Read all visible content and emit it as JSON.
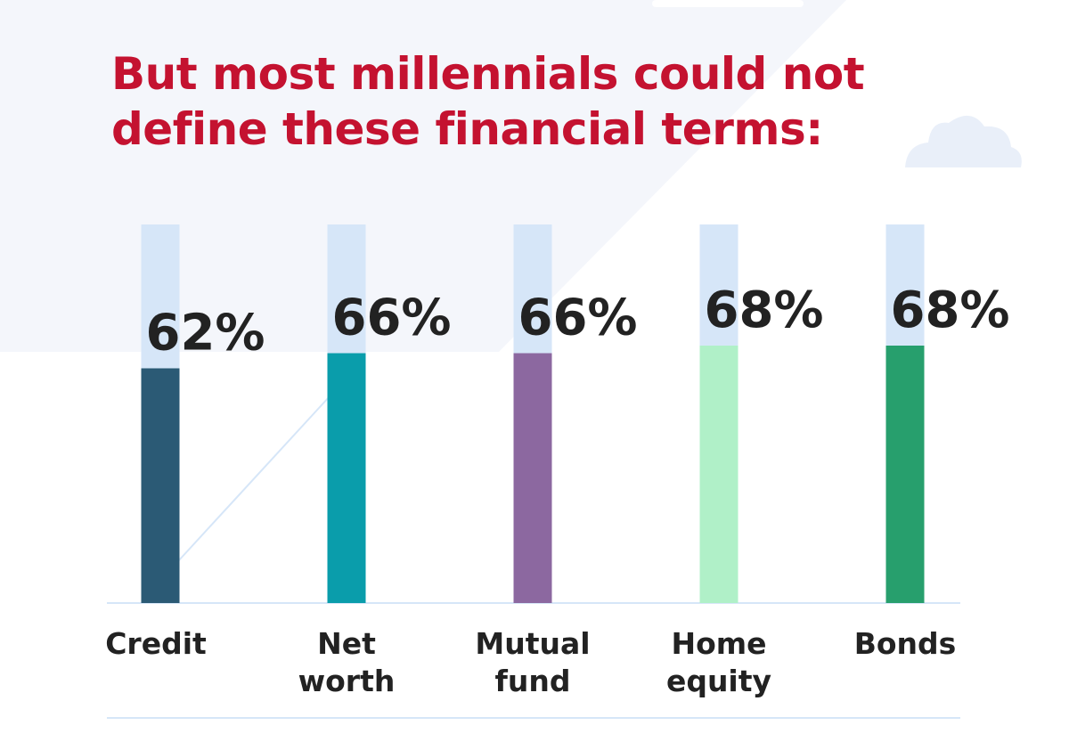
{
  "chart_data": {
    "type": "bar",
    "title": "But most millennials could not define these financial terms:",
    "categories": [
      "Credit",
      "Net worth",
      "Mutual fund",
      "Home equity",
      "Bonds"
    ],
    "values": [
      62,
      66,
      66,
      68,
      68
    ],
    "value_labels": [
      "62%",
      "66%",
      "66%",
      "68%",
      "68%"
    ],
    "colors": [
      "#2b5a75",
      "#0a9dab",
      "#8c68a0",
      "#b0f0c8",
      "#279f6d"
    ],
    "track_color": "#d6e6f8",
    "ylim": [
      0,
      100
    ]
  }
}
